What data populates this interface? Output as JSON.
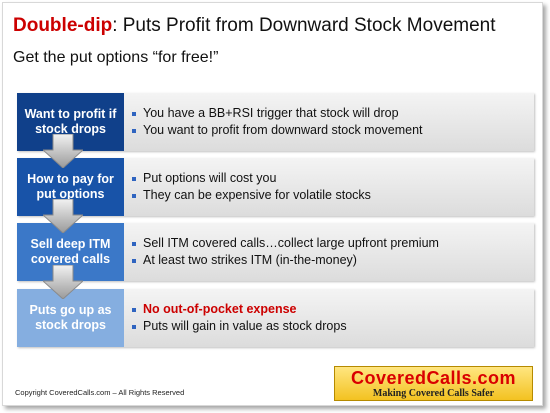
{
  "title": {
    "highlight": "Double-dip",
    "rest": ": Puts Profit from Downward Stock Movement"
  },
  "subtitle": "Get the put options “for free!”",
  "rows": [
    {
      "label": "Want to profit if stock drops",
      "bullets": [
        "You have a BB+RSI trigger that stock will drop",
        "You want to profit from downward stock movement"
      ]
    },
    {
      "label": "How to pay for put options",
      "bullets": [
        "Put options will cost you",
        "They can be expensive for volatile stocks"
      ]
    },
    {
      "label": "Sell deep ITM covered calls",
      "bullets": [
        "Sell ITM covered calls…collect large upfront premium",
        "At least two strikes ITM (in-the-money)"
      ]
    },
    {
      "label": "Puts go up as stock drops",
      "bullets": [
        "No out-of-pocket expense",
        "Puts will gain in value as stock drops"
      ]
    }
  ],
  "footer": {
    "copyright": "Copyright CoveredCalls.com – All Rights Reserved",
    "logo_main": "CoveredCalls.com",
    "logo_sub": "Making Covered Calls Safer"
  },
  "colors": {
    "title_highlight": "#cc0000",
    "label_1": "#10408a",
    "label_2": "#1853a8",
    "label_3": "#3b78c8",
    "label_4": "#85aee0",
    "emphasis": "#cc0000"
  }
}
